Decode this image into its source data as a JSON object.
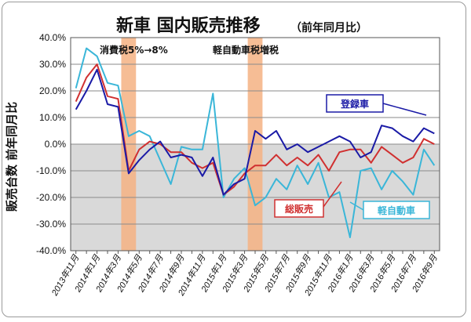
{
  "chart_data": {
    "type": "line",
    "title": "新車 国内販売推移",
    "subtitle": "（前年同月比）",
    "ylabel": "販売台数 前年同月比",
    "xlabel": "",
    "ylim": [
      -40,
      40
    ],
    "y_ticks": [
      "40.0%",
      "30.0%",
      "20.0%",
      "10.0%",
      "0.0%",
      "-10.0%",
      "-20.0%",
      "-30.0%",
      "-40.0%"
    ],
    "y_tick_values": [
      40,
      30,
      20,
      10,
      0,
      -10,
      -20,
      -30,
      -40
    ],
    "grid": true,
    "negative_region_shaded": true,
    "x": [
      "2013年11月",
      "2013年12月",
      "2014年1月",
      "2014年2月",
      "2014年3月",
      "2014年4月",
      "2014年5月",
      "2014年6月",
      "2014年7月",
      "2014年8月",
      "2014年9月",
      "2014年10月",
      "2014年11月",
      "2014年12月",
      "2015年1月",
      "2015年2月",
      "2015年3月",
      "2015年4月",
      "2015年5月",
      "2015年6月",
      "2015年7月",
      "2015年8月",
      "2015年9月",
      "2015年10月",
      "2015年11月",
      "2015年12月",
      "2016年1月",
      "2016年2月",
      "2016年3月",
      "2016年4月",
      "2016年5月",
      "2016年6月",
      "2016年7月",
      "2016年8月",
      "2016年9月"
    ],
    "x_tick_labels": [
      "2013年11月",
      "2014年1月",
      "2014年3月",
      "2014年5月",
      "2014年7月",
      "2014年9月",
      "2014年11月",
      "2015年1月",
      "2015年3月",
      "2015年5月",
      "2015年7月",
      "2015年9月",
      "2015年11月",
      "2016年1月",
      "2016年3月",
      "2016年5月",
      "2016年7月",
      "2016年9月"
    ],
    "x_tick_indices": [
      0,
      2,
      4,
      6,
      8,
      10,
      12,
      14,
      16,
      18,
      20,
      22,
      24,
      26,
      28,
      30,
      32,
      34
    ],
    "series": [
      {
        "name": "登録車",
        "color": "#1a1aa6",
        "values": [
          13,
          20,
          28,
          15,
          14,
          -11,
          -6,
          -2,
          1,
          -5,
          -4,
          -5,
          -12,
          -5,
          -19,
          -15,
          -13,
          5,
          2,
          5,
          -2,
          0,
          -3,
          -1,
          1,
          3,
          1,
          -5,
          -3,
          7,
          6,
          3,
          1,
          6,
          4
        ]
      },
      {
        "name": "総販売",
        "color": "#d03030",
        "values": [
          16,
          25,
          30,
          18,
          17,
          -10,
          -2,
          1,
          0,
          -3,
          -3,
          -7,
          -9,
          -7,
          -19,
          -16,
          -11,
          -8,
          -8,
          -4,
          -8,
          -5,
          -8,
          -4,
          -10,
          -3,
          -2,
          -2,
          -7,
          -1,
          -4,
          -7,
          -5,
          2,
          0
        ]
      },
      {
        "name": "軽自動車",
        "color": "#3ab6d8",
        "values": [
          21,
          36,
          33,
          23,
          22,
          3,
          5,
          3,
          -6,
          -15,
          -1,
          -2,
          -2,
          19,
          -20,
          -13,
          -9,
          -23,
          -20,
          -13,
          -17,
          -8,
          -15,
          -7,
          -20,
          -18,
          -35,
          -10,
          -9,
          -17,
          -10,
          -14,
          -19,
          -2,
          -8
        ]
      }
    ],
    "annotations": [
      {
        "text": "消費税5%→8%",
        "band_index": 5
      },
      {
        "text": "軽自動車税増税",
        "band_index": 17
      }
    ]
  }
}
